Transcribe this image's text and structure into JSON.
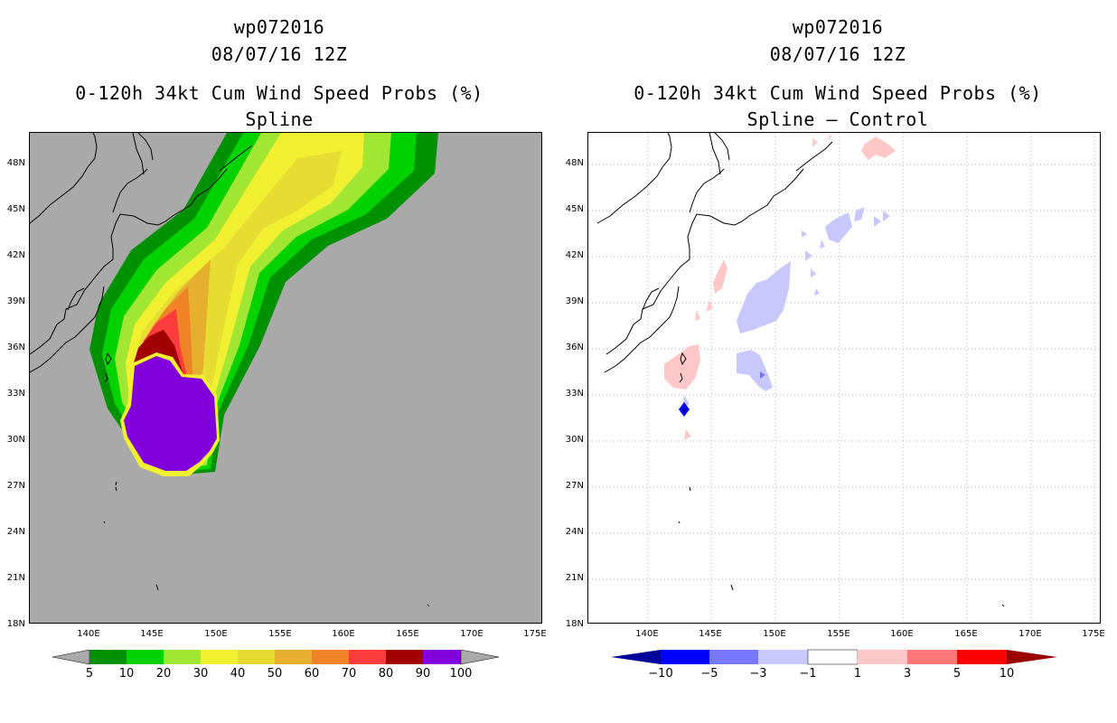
{
  "colors": {
    "land_bg": "#a9a9a9",
    "prob_5": "#009100",
    "prob_10": "#00d200",
    "prob_20": "#a0e632",
    "prob_30": "#f0f030",
    "prob_40": "#e6dc32",
    "prob_50": "#e6af2d",
    "prob_60": "#f08228",
    "prob_70": "#fa3c3c",
    "prob_80": "#a00000",
    "prob_90": "#8200dc",
    "diff_neg10": "#00009b",
    "diff_neg5": "#0000ff",
    "diff_neg3": "#7878ff",
    "diff_neg1": "#c8c8ff",
    "diff_pos1": "#ffc8c8",
    "diff_pos3": "#ff7878",
    "diff_pos5": "#ff0000",
    "diff_pos10": "#9b0000"
  },
  "left": {
    "storm_id": "wp072016",
    "datetime": "08/07/16 12Z",
    "product": "0-120h 34kt Cum Wind Speed Probs (%)",
    "subtitle": "Spline",
    "colorbar_labels": [
      "5",
      "10",
      "20",
      "30",
      "40",
      "50",
      "60",
      "70",
      "80",
      "90",
      "100"
    ]
  },
  "right": {
    "storm_id": "wp072016",
    "datetime": "08/07/16 12Z",
    "product": "0-120h 34kt Cum Wind Speed Probs (%)",
    "subtitle": "Spline – Control",
    "colorbar_labels": [
      "−10",
      "−5",
      "−3",
      "−1",
      "1",
      "3",
      "5",
      "10"
    ]
  },
  "axes": {
    "lat_labels": [
      "48N",
      "45N",
      "42N",
      "39N",
      "36N",
      "33N",
      "30N",
      "27N",
      "24N",
      "21N",
      "18N"
    ],
    "lon_labels": [
      "140E",
      "145E",
      "150E",
      "155E",
      "160E",
      "165E",
      "170E",
      "175E"
    ]
  }
}
